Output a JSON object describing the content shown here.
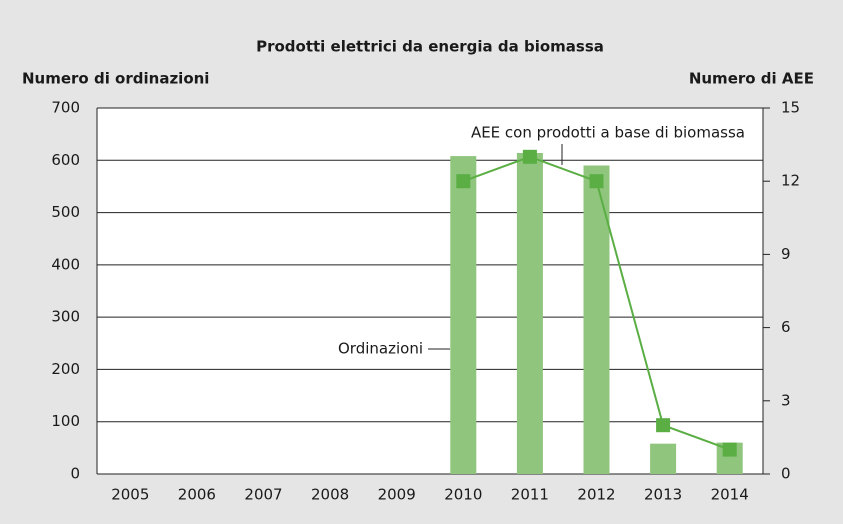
{
  "chart_data": {
    "type": "bar-line",
    "title": "Prodotti elettrici da energia da biomassa",
    "y_label": "Numero di ordinazioni",
    "y2_label": "Numero di AEE",
    "categories": [
      "2005",
      "2006",
      "2007",
      "2008",
      "2009",
      "2010",
      "2011",
      "2012",
      "2013",
      "2014"
    ],
    "series": [
      {
        "name": "Ordinazioni",
        "type": "bar",
        "color": "#8fc57c",
        "values": [
          null,
          null,
          null,
          null,
          null,
          608,
          614,
          590,
          58,
          60
        ]
      },
      {
        "name": "AEE con prodotti a base di biomassa",
        "type": "line",
        "axis": "y2",
        "color": "#5aae44",
        "values": [
          null,
          null,
          null,
          null,
          null,
          12,
          13,
          12,
          2,
          1
        ]
      }
    ],
    "ylim": [
      0,
      700
    ],
    "yticks": [
      0,
      100,
      200,
      300,
      400,
      500,
      600,
      700
    ],
    "y2lim": [
      0,
      15
    ],
    "y2ticks": [
      0,
      3,
      6,
      9,
      12,
      15
    ],
    "grid": true
  }
}
